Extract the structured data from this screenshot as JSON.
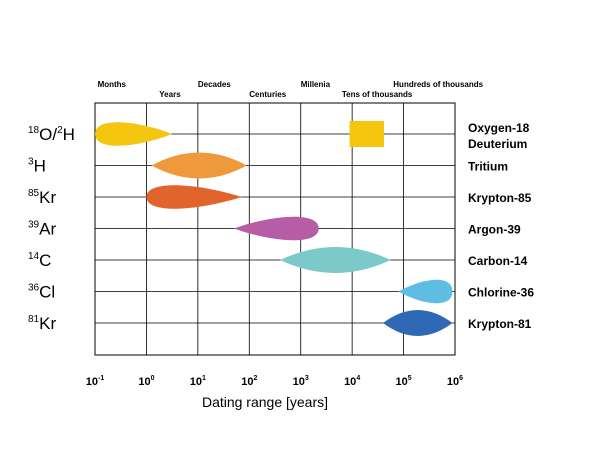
{
  "chart_data": {
    "type": "range",
    "xlabel": "Dating range [years]",
    "xscale": "log10",
    "xlim_exponent": [
      -1,
      6
    ],
    "x_ticks": [
      {
        "base": "10",
        "exp": "-1"
      },
      {
        "base": "10",
        "exp": "0"
      },
      {
        "base": "10",
        "exp": "1"
      },
      {
        "base": "10",
        "exp": "2"
      },
      {
        "base": "10",
        "exp": "3"
      },
      {
        "base": "10",
        "exp": "4"
      },
      {
        "base": "10",
        "exp": "5"
      },
      {
        "base": "10",
        "exp": "6"
      }
    ],
    "time_scale_labels": [
      {
        "label": "Months",
        "row": "upper",
        "log10_years": -0.95
      },
      {
        "label": "Years",
        "row": "lower",
        "log10_years": 0.25
      },
      {
        "label": "Decades",
        "row": "upper",
        "log10_years": 1.0
      },
      {
        "label": "Centuries",
        "row": "lower",
        "log10_years": 2.0
      },
      {
        "label": "Millenia",
        "row": "upper",
        "log10_years": 3.0
      },
      {
        "label": "Tens of thousands",
        "row": "lower",
        "log10_years": 3.8
      },
      {
        "label": "Hundreds of thousands",
        "row": "upper",
        "log10_years": 4.8
      }
    ],
    "series": [
      {
        "symbol_sup": "18",
        "symbol": "O/",
        "symbol_sup2": "2",
        "symbol2": "H",
        "name": "Oxygen-18",
        "name2": "Deuterium",
        "color": "#F5C60F",
        "shape": "teardrop-right",
        "range_log10": [
          -1.0,
          0.5
        ],
        "bar_range_log10": [
          3.95,
          4.62
        ]
      },
      {
        "symbol_sup": "3",
        "symbol": "H",
        "name": "Tritium",
        "color": "#EE9A3C",
        "shape": "lens",
        "range_log10": [
          0.1,
          1.95
        ]
      },
      {
        "symbol_sup": "85",
        "symbol": "Kr",
        "name": "Krypton-85",
        "color": "#E1642C",
        "shape": "teardrop-right",
        "range_log10": [
          0.0,
          1.85
        ]
      },
      {
        "symbol_sup": "39",
        "symbol": "Ar",
        "name": "Argon-39",
        "color": "#B65DA6",
        "shape": "teardrop-left",
        "range_log10": [
          1.7,
          3.35
        ]
      },
      {
        "symbol_sup": "14",
        "symbol": "C",
        "name": "Carbon-14",
        "color": "#7CC9C9",
        "shape": "lens",
        "range_log10": [
          2.6,
          4.75
        ]
      },
      {
        "symbol_sup": "36",
        "symbol": "Cl",
        "name": "Chlorine-36",
        "color": "#5FBCE3",
        "shape": "teardrop-left",
        "range_log10": [
          4.9,
          5.95
        ]
      },
      {
        "symbol_sup": "81",
        "symbol": "Kr",
        "name": "Krypton-81",
        "color": "#2F69B6",
        "shape": "lens",
        "range_log10": [
          4.6,
          5.95
        ]
      }
    ],
    "grid": true
  }
}
